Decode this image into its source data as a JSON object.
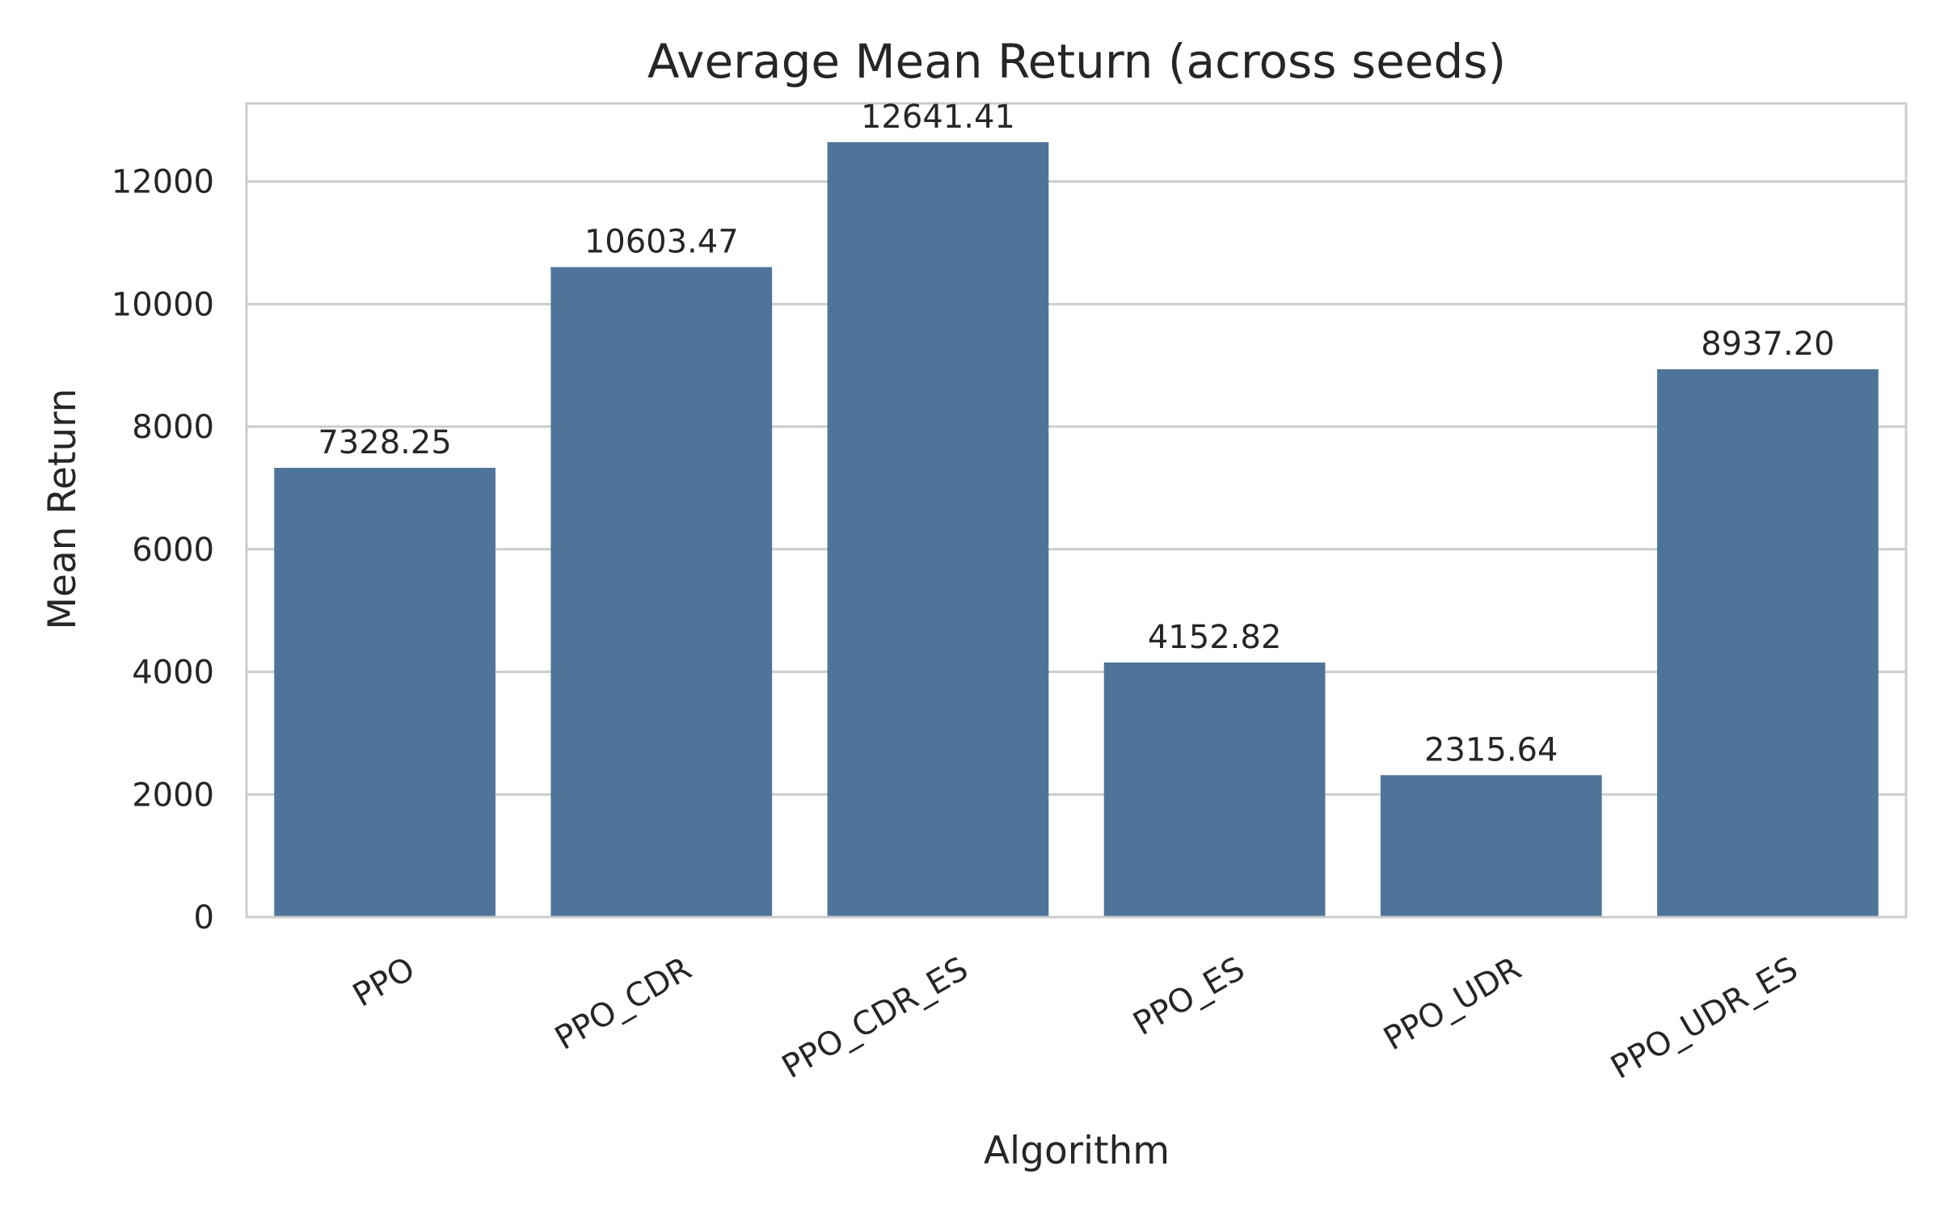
{
  "chart_data": {
    "type": "bar",
    "title": "Average Mean Return (across seeds)",
    "xlabel": "Algorithm",
    "ylabel": "Mean Return",
    "categories": [
      "PPO",
      "PPO_CDR",
      "PPO_CDR_ES",
      "PPO_ES",
      "PPO_UDR",
      "PPO_UDR_ES"
    ],
    "values": [
      7328.25,
      10603.47,
      12641.41,
      4152.82,
      2315.64,
      8937.2
    ],
    "value_labels": [
      "7328.25",
      "10603.47",
      "12641.41",
      "4152.82",
      "2315.64",
      "8937.20"
    ],
    "ylim": [
      0,
      13273
    ],
    "yticks": [
      0,
      2000,
      4000,
      6000,
      8000,
      10000,
      12000
    ],
    "grid": "horizontal",
    "legend": "none",
    "colors": {
      "bar": "#4e7599",
      "grid": "#cccccc",
      "frame": "#cccccc",
      "text": "#262626"
    }
  }
}
